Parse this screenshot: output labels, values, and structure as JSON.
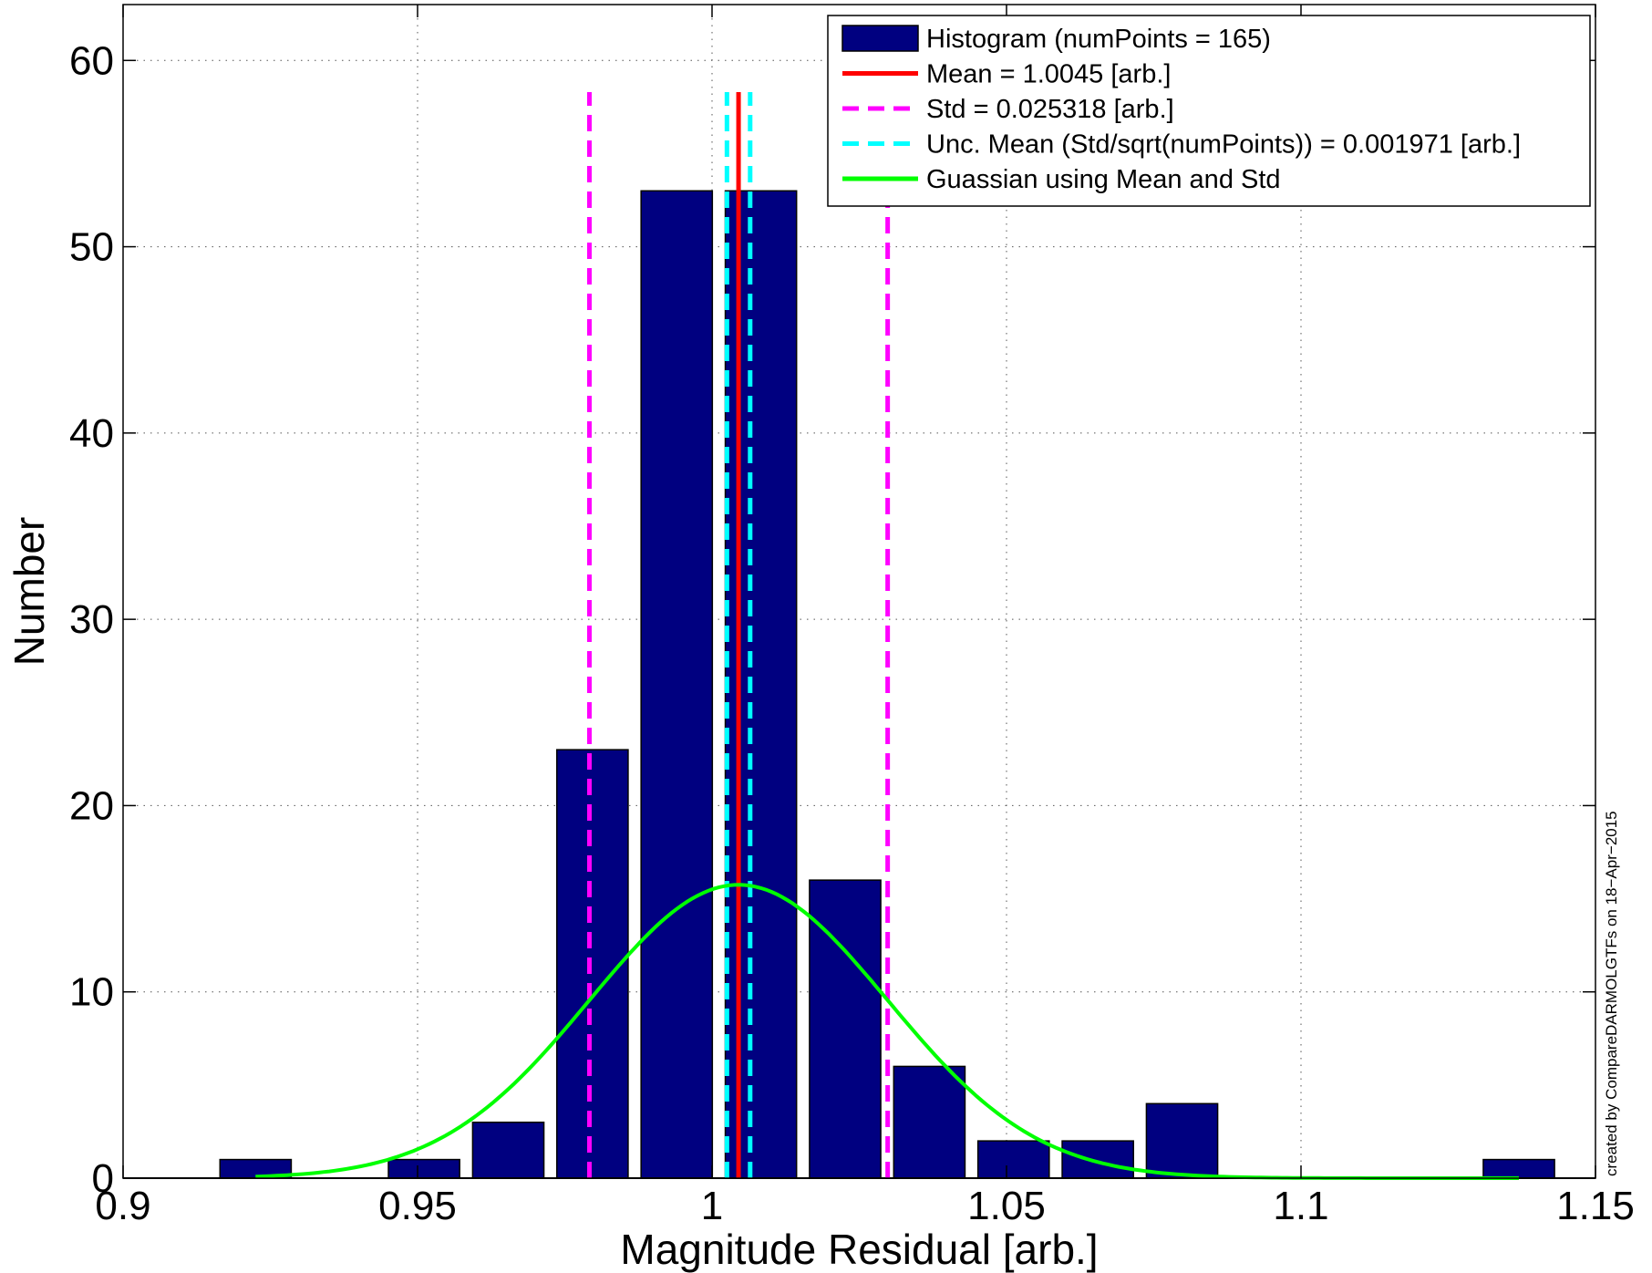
{
  "chart_data": {
    "type": "bar",
    "xlabel": "Magnitude Residual [arb.]",
    "ylabel": "Number",
    "xlim": [
      0.9,
      1.15
    ],
    "ylim": [
      0,
      63
    ],
    "xticks": [
      "0.9",
      "0.95",
      "1",
      "1.05",
      "1.1",
      "1.15"
    ],
    "yticks": [
      "0",
      "10",
      "20",
      "30",
      "40",
      "50",
      "60"
    ],
    "grid": true,
    "legend_position": "top-right",
    "bins": {
      "centers": [
        0.9225,
        0.9368,
        0.9511,
        0.9654,
        0.9797,
        0.994,
        1.0083,
        1.0226,
        1.0369,
        1.0512,
        1.0655,
        1.0798,
        1.0941,
        1.1084,
        1.1227,
        1.137
      ],
      "counts": [
        1,
        0,
        1,
        3,
        23,
        53,
        53,
        16,
        6,
        2,
        2,
        4,
        0,
        0,
        0,
        1
      ],
      "color": "#000080"
    },
    "series": [
      {
        "name": "Histogram (numPoints = 165)",
        "kind": "bars",
        "color": "#000080"
      },
      {
        "name": "Mean = 1.0045 [arb.]",
        "kind": "vline",
        "x": [
          1.0045
        ],
        "y_extent": [
          0,
          58.3
        ],
        "color": "#ff0000",
        "style": "solid"
      },
      {
        "name": "Std = 0.025318 [arb.]",
        "kind": "vline",
        "x": [
          0.97918,
          1.02982
        ],
        "y_extent": [
          0,
          58.3
        ],
        "color": "#ff00ff",
        "style": "dashed"
      },
      {
        "name": "Unc. Mean (Std/sqrt(numPoints)) = 0.001971 [arb.]",
        "kind": "vline",
        "x": [
          1.00253,
          1.00647
        ],
        "y_extent": [
          0,
          58.3
        ],
        "color": "#00ffff",
        "style": "dashed"
      },
      {
        "name": "Guassian using Mean and Std",
        "kind": "gaussian",
        "mean": 1.0045,
        "std": 0.025318,
        "peak": 15.75,
        "x_range": [
          0.9225,
          1.137
        ],
        "color": "#00ff00",
        "style": "solid"
      }
    ],
    "annotation": "created by CompareDARMOLGTFs on 18−Apr−2015"
  }
}
